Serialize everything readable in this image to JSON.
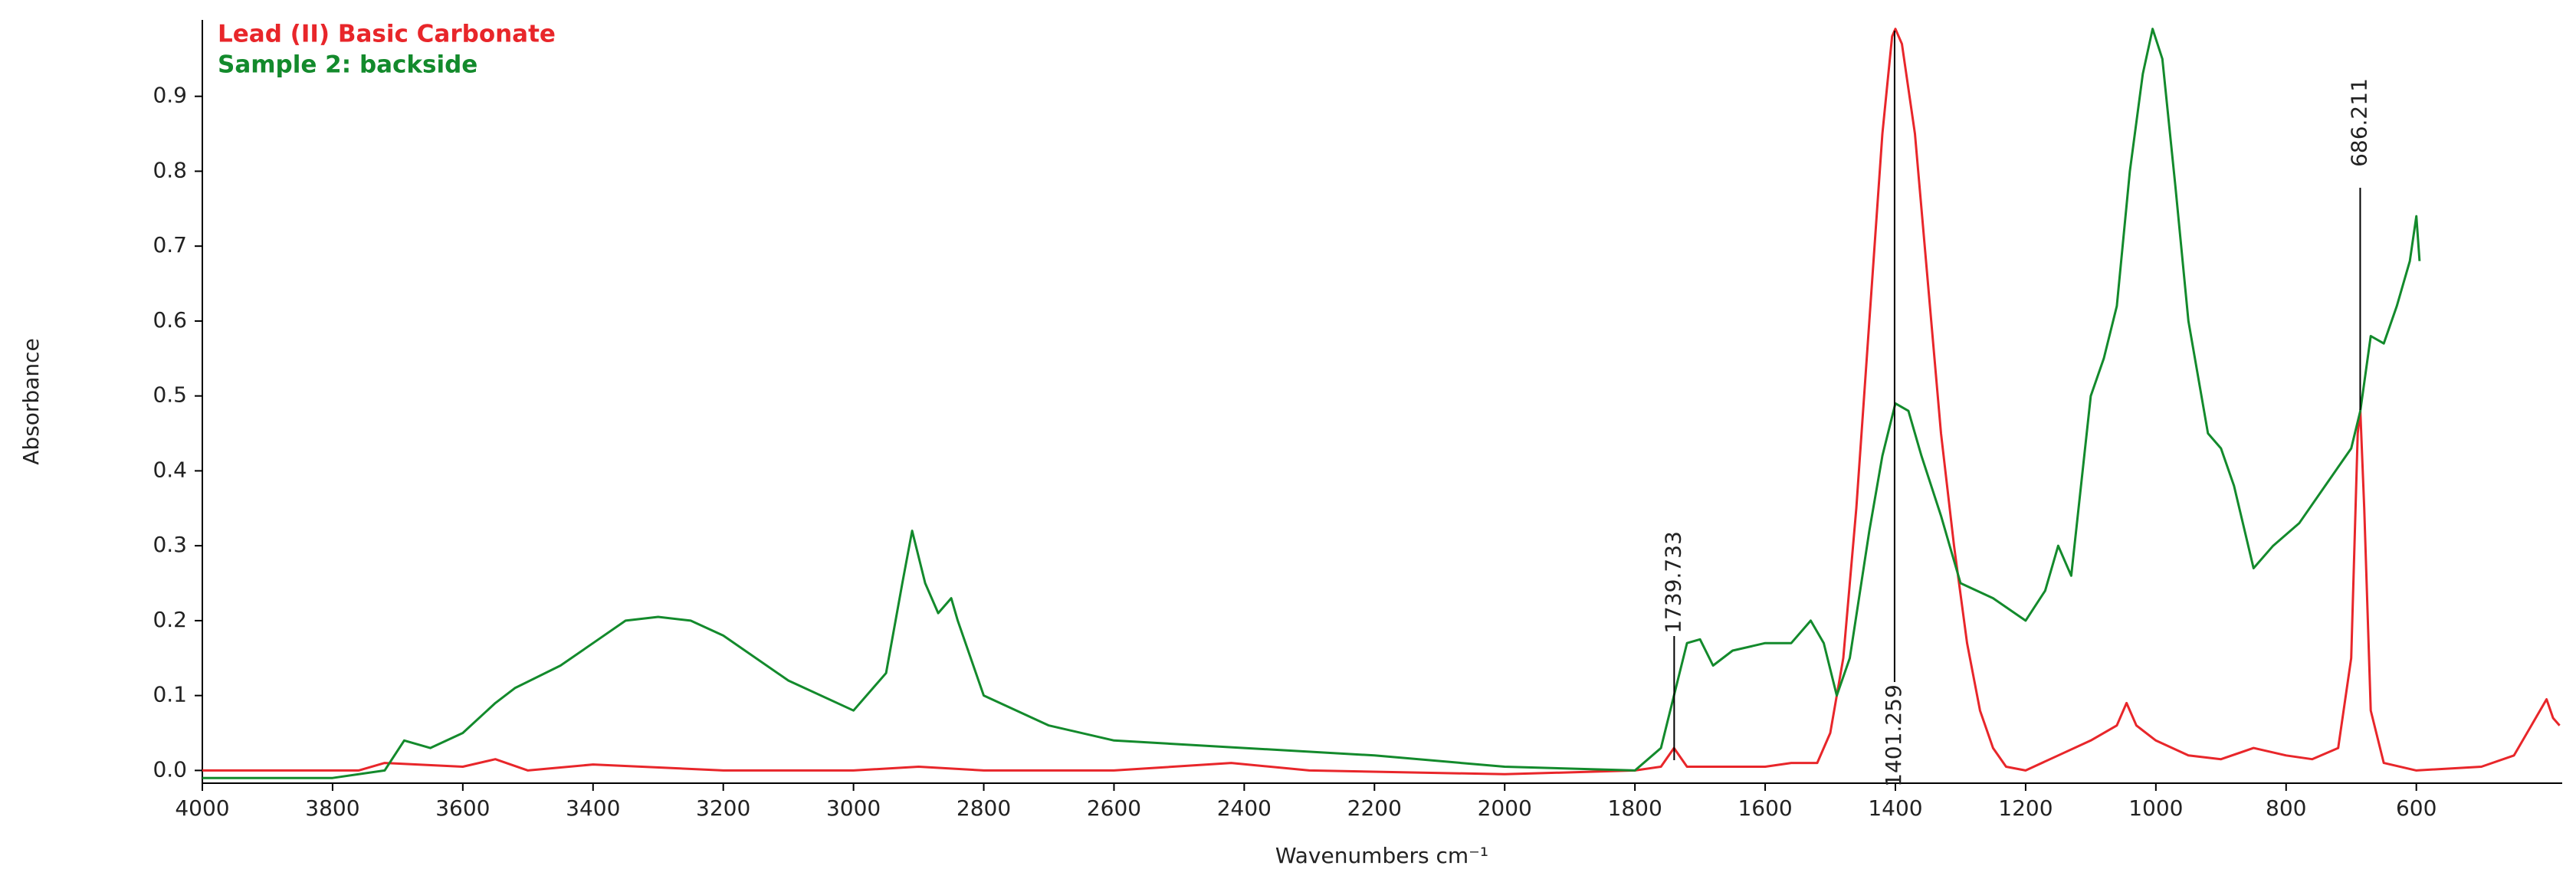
{
  "chart_data": {
    "type": "line",
    "x_label": "Wavenumbers cm⁻¹",
    "y_label": "Absorbance",
    "xlim": [
      4000,
      376
    ],
    "ylim": [
      -0.017,
      1.002
    ],
    "xticks": [
      4000,
      3800,
      3600,
      3400,
      3200,
      3000,
      2800,
      2600,
      2400,
      2200,
      2000,
      1800,
      1600,
      1400,
      1200,
      1000,
      800,
      600
    ],
    "yticks": [
      {
        "value": 0,
        "label": "0.0"
      },
      0.1,
      0.2,
      0.3,
      0.4,
      0.5,
      0.6,
      0.7,
      0.8,
      0.9
    ],
    "series": [
      {
        "name": "Lead (II) Basic Carbonate",
        "color": "#e8262a",
        "x": [
          4000,
          3760,
          3720,
          3600,
          3550,
          3500,
          3400,
          3200,
          3000,
          2900,
          2800,
          2600,
          2420,
          2300,
          2000,
          1800,
          1760,
          1740,
          1720,
          1600,
          1560,
          1520,
          1500,
          1480,
          1460,
          1440,
          1420,
          1405,
          1400,
          1390,
          1370,
          1350,
          1330,
          1310,
          1290,
          1270,
          1250,
          1230,
          1200,
          1150,
          1100,
          1060,
          1045,
          1030,
          1000,
          950,
          900,
          850,
          800,
          760,
          720,
          700,
          690,
          686,
          680,
          670,
          650,
          600,
          500,
          450,
          400,
          390,
          380
        ],
        "values": [
          0,
          0,
          0.01,
          0.005,
          0.015,
          0,
          0.008,
          0,
          0,
          0.005,
          0,
          0,
          0.01,
          0,
          -0.005,
          0,
          0.005,
          0.03,
          0.005,
          0.005,
          0.01,
          0.01,
          0.05,
          0.15,
          0.35,
          0.6,
          0.85,
          0.98,
          0.99,
          0.97,
          0.85,
          0.65,
          0.45,
          0.3,
          0.17,
          0.08,
          0.03,
          0.005,
          0,
          0.02,
          0.04,
          0.06,
          0.09,
          0.06,
          0.04,
          0.02,
          0.015,
          0.03,
          0.02,
          0.015,
          0.03,
          0.15,
          0.45,
          0.48,
          0.35,
          0.08,
          0.01,
          0,
          0.005,
          0.02,
          0.095,
          0.07,
          0.06
        ]
      },
      {
        "name": "Sample 2: backside",
        "color": "#138a2c",
        "x": [
          4000,
          3800,
          3720,
          3690,
          3650,
          3600,
          3550,
          3520,
          3450,
          3400,
          3350,
          3300,
          3250,
          3200,
          3100,
          3000,
          2950,
          2925,
          2910,
          2890,
          2870,
          2850,
          2840,
          2800,
          2700,
          2600,
          2400,
          2200,
          2000,
          1800,
          1760,
          1740,
          1720,
          1700,
          1680,
          1650,
          1600,
          1560,
          1530,
          1510,
          1490,
          1470,
          1440,
          1420,
          1400,
          1380,
          1360,
          1330,
          1300,
          1250,
          1200,
          1170,
          1150,
          1130,
          1100,
          1080,
          1060,
          1040,
          1020,
          1005,
          990,
          970,
          950,
          920,
          900,
          880,
          850,
          820,
          780,
          740,
          700,
          686,
          670,
          650,
          630,
          610,
          600,
          595
        ],
        "values": [
          -0.01,
          -0.01,
          0,
          0.04,
          0.03,
          0.05,
          0.09,
          0.11,
          0.14,
          0.17,
          0.2,
          0.205,
          0.2,
          0.18,
          0.12,
          0.08,
          0.13,
          0.25,
          0.32,
          0.25,
          0.21,
          0.23,
          0.2,
          0.1,
          0.06,
          0.04,
          0.03,
          0.02,
          0.005,
          0,
          0.03,
          0.1,
          0.17,
          0.175,
          0.14,
          0.16,
          0.17,
          0.17,
          0.2,
          0.17,
          0.1,
          0.15,
          0.32,
          0.42,
          0.49,
          0.48,
          0.42,
          0.34,
          0.25,
          0.23,
          0.2,
          0.24,
          0.3,
          0.26,
          0.5,
          0.55,
          0.62,
          0.8,
          0.93,
          0.99,
          0.95,
          0.78,
          0.6,
          0.45,
          0.43,
          0.38,
          0.27,
          0.3,
          0.33,
          0.38,
          0.43,
          0.48,
          0.58,
          0.57,
          0.62,
          0.68,
          0.74,
          0.68
        ]
      }
    ],
    "annotations": [
      {
        "label": "1739.733",
        "x": 1739.733
      },
      {
        "label": "1401.259",
        "x": 1401.259
      },
      {
        "label": "686.211",
        "x": 686.211
      }
    ]
  }
}
